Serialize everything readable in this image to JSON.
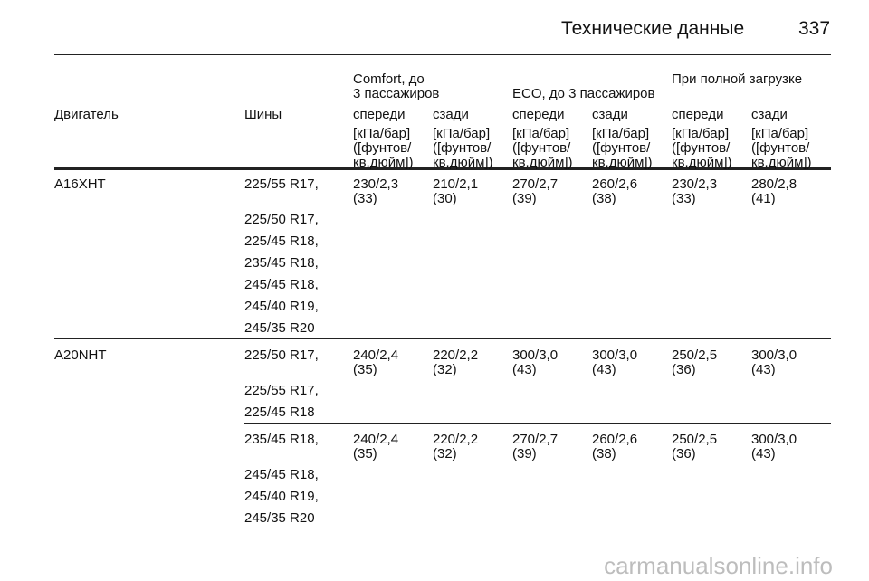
{
  "header": {
    "title": "Технические данные",
    "page_number": "337"
  },
  "table": {
    "group_headers": [
      "Comfort, до\n3 пассажиров",
      "ECO, до 3 пассажиров",
      "При полной загрузке"
    ],
    "columns": [
      "Двигатель",
      "Шины",
      "спереди",
      "сзади",
      "спереди",
      "сзади",
      "спереди",
      "сзади"
    ],
    "units": [
      "[кПа/бар]\n([фунтов/\nкв.дюйм])",
      "[кПа/бар]\n([фунтов/\nкв.дюйм])",
      "[кПа/бар]\n([фунтов/\nкв.дюйм])",
      "[кПа/бар]\n([фунтов/\nкв.дюйм])",
      "[кПа/бар]\n([фунтов/\nкв.дюйм])",
      "[кПа/бар]\n([фунтов/\nкв.дюйм])"
    ],
    "rows": [
      {
        "engine": "A16XHT",
        "groups": [
          {
            "tires": [
              "225/55 R17,",
              "225/50 R17,",
              "225/45 R18,",
              "235/45 R18,",
              "245/45 R18,",
              "245/40 R19,",
              "245/35 R20"
            ],
            "pressures": [
              "230/2,3\n(33)",
              "210/2,1\n(30)",
              "270/2,7\n(39)",
              "260/2,6\n(38)",
              "230/2,3\n(33)",
              "280/2,8\n(41)"
            ]
          }
        ]
      },
      {
        "engine": "A20NHT",
        "groups": [
          {
            "tires": [
              "225/50 R17,",
              "225/55 R17,",
              "225/45 R18"
            ],
            "pressures": [
              "240/2,4\n(35)",
              "220/2,2\n(32)",
              "300/3,0\n(43)",
              "300/3,0\n(43)",
              "250/2,5\n(36)",
              "300/3,0\n(43)"
            ]
          },
          {
            "tires": [
              "235/45 R18,",
              "245/45 R18,",
              "245/40 R19,",
              "245/35 R20"
            ],
            "pressures": [
              "240/2,4\n(35)",
              "220/2,2\n(32)",
              "270/2,7\n(39)",
              "260/2,6\n(38)",
              "250/2,5\n(36)",
              "300/3,0\n(43)"
            ]
          }
        ]
      }
    ]
  },
  "watermark": "carmanualsonline.info"
}
